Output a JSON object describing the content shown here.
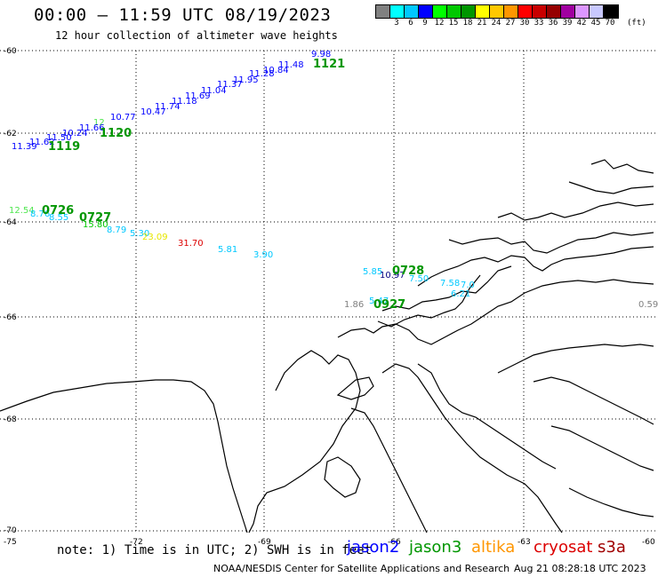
{
  "header": {
    "title": "00:00 – 11:59 UTC 08/19/2023",
    "subtitle": "12 hour collection of altimeter wave heights"
  },
  "colorbar": {
    "colors": [
      "#808080",
      "#00ffff",
      "#00c8ff",
      "#0000ff",
      "#00ff00",
      "#00c800",
      "#009600",
      "#ffff00",
      "#ffc800",
      "#ff9600",
      "#ff0000",
      "#c80000",
      "#960000",
      "#a000a0",
      "#dc96ff",
      "#c8c8ff",
      "#000000"
    ],
    "labels": [
      "",
      "3",
      "6",
      "9",
      "12",
      "15",
      "18",
      "21",
      "24",
      "27",
      "30",
      "33",
      "36",
      "39",
      "42",
      "45",
      "70"
    ],
    "unit": "(ft)"
  },
  "axes": {
    "lat_labels": [
      "-60",
      "-62",
      "-64",
      "-66",
      "-68",
      "-70"
    ],
    "lon_labels": [
      "-75",
      "-72",
      "-69",
      "-66",
      "-63",
      "-60"
    ]
  },
  "passes": [
    {
      "label": "1121",
      "color": "#009600"
    },
    {
      "label": "1120",
      "color": "#009600"
    },
    {
      "label": "1119",
      "color": "#009600"
    },
    {
      "label": "0726",
      "color": "#009600"
    },
    {
      "label": "0727",
      "color": "#009600"
    },
    {
      "label": "0728",
      "color": "#009600"
    },
    {
      "label": "0927",
      "color": "#009600"
    }
  ],
  "observations": [
    {
      "v": "9.98",
      "c": "#0000ff"
    },
    {
      "v": "11.48",
      "c": "#0000ff"
    },
    {
      "v": "10.84",
      "c": "#0000ff"
    },
    {
      "v": "11.28",
      "c": "#0000ff"
    },
    {
      "v": "11.95",
      "c": "#0000ff"
    },
    {
      "v": "11.37",
      "c": "#0000ff"
    },
    {
      "v": "11.04",
      "c": "#0000ff"
    },
    {
      "v": "11.69",
      "c": "#0000ff"
    },
    {
      "v": "11.18",
      "c": "#0000ff"
    },
    {
      "v": "11.74",
      "c": "#0000ff"
    },
    {
      "v": "10.47",
      "c": "#0000ff"
    },
    {
      "v": "10.77",
      "c": "#0000ff"
    },
    {
      "v": "12",
      "c": "#50e650"
    },
    {
      "v": "11.66",
      "c": "#0000ff"
    },
    {
      "v": "10.24",
      "c": "#0000ff"
    },
    {
      "v": "11.50",
      "c": "#0000ff"
    },
    {
      "v": "11.62",
      "c": "#0000ff"
    },
    {
      "v": "11.39",
      "c": "#0000ff"
    },
    {
      "v": "12.54",
      "c": "#50e650"
    },
    {
      "v": "8.76",
      "c": "#00c8ff"
    },
    {
      "v": "8.55",
      "c": "#00c8ff"
    },
    {
      "v": "15.80",
      "c": "#00c800"
    },
    {
      "v": "8.79",
      "c": "#00c8ff"
    },
    {
      "v": "5.30",
      "c": "#00c8ff"
    },
    {
      "v": "23.09",
      "c": "#e6e600"
    },
    {
      "v": "31.70",
      "c": "#dc0000"
    },
    {
      "v": "5.81",
      "c": "#00c8ff"
    },
    {
      "v": "3.90",
      "c": "#00c8ff"
    },
    {
      "v": "5.85",
      "c": "#00c8ff"
    },
    {
      "v": "10.97",
      "c": "#000080"
    },
    {
      "v": "7.50",
      "c": "#00c8ff"
    },
    {
      "v": "7.58",
      "c": "#00c8ff"
    },
    {
      "v": "7.0",
      "c": "#00c8ff"
    },
    {
      "v": "6.21",
      "c": "#00c8ff"
    },
    {
      "v": "1.86",
      "c": "#808080"
    },
    {
      "v": "5.47",
      "c": "#00c8ff"
    },
    {
      "v": "0.59",
      "c": "#808080"
    }
  ],
  "footer": {
    "note": "note: 1) Time is in UTC; 2) SWH is in feet",
    "satellites": [
      {
        "name": "jason2",
        "color": "#0000ff"
      },
      {
        "name": "jason3",
        "color": "#009600"
      },
      {
        "name": "altika",
        "color": "#ff9600"
      },
      {
        "name": "cryosat",
        "color": "#dc0000"
      },
      {
        "name": "s3a",
        "color": "#a00000"
      }
    ],
    "credit": "NOAA/NESDIS Center for Satellite Applications and Research",
    "timestamp": "Aug 21 08:28:18 UTC 2023"
  }
}
